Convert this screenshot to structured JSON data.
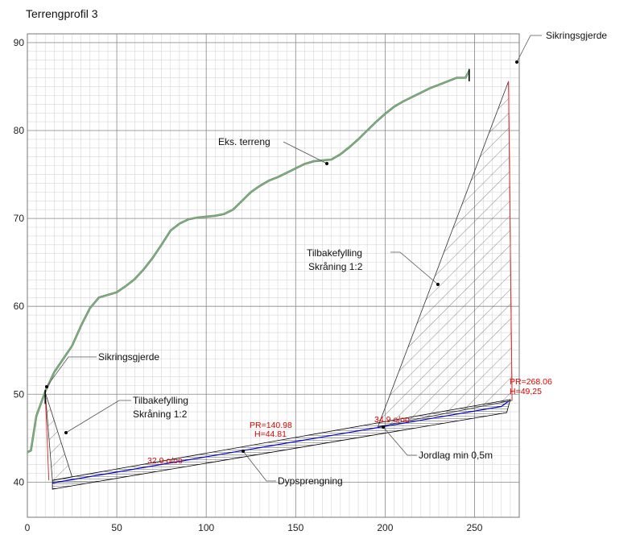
{
  "title": "Terrengprofil 3",
  "chart_data": {
    "type": "line",
    "title": "Terrengprofil 3",
    "xlim": [
      0,
      275
    ],
    "ylim": [
      36,
      91
    ],
    "x_ticks": [
      0,
      50,
      100,
      150,
      200,
      250
    ],
    "y_ticks": [
      40,
      50,
      60,
      70,
      80,
      90
    ],
    "minor_grid": 5,
    "major_x_grid": [
      0,
      50,
      100,
      150,
      200,
      250
    ],
    "major_y_grid": [
      40,
      50,
      60,
      70,
      80,
      90
    ],
    "grid": true,
    "series": [
      {
        "name": "Eks. terreng",
        "color": "#6cc76c",
        "points": [
          [
            0,
            43.4
          ],
          [
            2,
            43.6
          ],
          [
            5,
            47.5
          ],
          [
            10,
            50.3
          ],
          [
            15,
            52.5
          ],
          [
            20,
            54
          ],
          [
            25,
            55.5
          ],
          [
            30,
            57.8
          ],
          [
            35,
            59.8
          ],
          [
            40,
            61
          ],
          [
            45,
            61.3
          ],
          [
            50,
            61.6
          ],
          [
            55,
            62.3
          ],
          [
            60,
            63.1
          ],
          [
            65,
            64.2
          ],
          [
            70,
            65.5
          ],
          [
            75,
            67
          ],
          [
            80,
            68.6
          ],
          [
            85,
            69.4
          ],
          [
            90,
            69.9
          ],
          [
            95,
            70.1
          ],
          [
            100,
            70.2
          ],
          [
            105,
            70.3
          ],
          [
            110,
            70.5
          ],
          [
            115,
            71
          ],
          [
            120,
            72
          ],
          [
            125,
            73
          ],
          [
            130,
            73.7
          ],
          [
            135,
            74.3
          ],
          [
            140,
            74.7
          ],
          [
            145,
            75.2
          ],
          [
            150,
            75.7
          ],
          [
            155,
            76.2
          ],
          [
            160,
            76.5
          ],
          [
            165,
            76.6
          ],
          [
            170,
            76.7
          ],
          [
            175,
            77.3
          ],
          [
            180,
            78.1
          ],
          [
            185,
            79
          ],
          [
            190,
            80
          ],
          [
            195,
            81
          ],
          [
            200,
            81.9
          ],
          [
            205,
            82.7
          ],
          [
            210,
            83.3
          ],
          [
            215,
            83.8
          ],
          [
            220,
            84.3
          ],
          [
            225,
            84.8
          ],
          [
            230,
            85.2
          ],
          [
            235,
            85.6
          ],
          [
            240,
            86
          ],
          [
            245,
            86
          ],
          [
            247,
            86.8
          ]
        ]
      },
      {
        "name": "Dypsprengning",
        "color": "#0000cc",
        "points": [
          [
            14,
            39.9
          ],
          [
            265,
            48.6
          ],
          [
            269,
            49.2
          ]
        ]
      }
    ],
    "hatched_regions": [
      {
        "name": "left-fill",
        "polygon": [
          [
            10,
            50.2
          ],
          [
            14,
            40.2
          ],
          [
            25,
            40.6
          ]
        ],
        "label_value": "Tilbakefylling Skråning 1:2"
      },
      {
        "name": "right-fill",
        "polygon": [
          [
            196,
            46.3
          ],
          [
            271,
            49.3
          ],
          [
            269,
            85.6
          ]
        ],
        "label_value": "Tilbakefylling Skråning 1:2"
      }
    ],
    "labels": {
      "eks_terreng": "Eks. terreng",
      "sikringsgjerde_top": "Sikringsgjerde",
      "sikringsgjerde_left": "Sikringsgjerde",
      "tilbake_left_line1": "Tilbakefylling",
      "tilbake_left_line2": "Skråning 1:2",
      "tilbake_right_line1": "Tilbakefylling",
      "tilbake_right_line2": "Skråning 1:2",
      "jordlag": "Jordlag min 0,5m",
      "dypsprengning": "Dypsprengning",
      "slope_left": "32.9 o/oo",
      "slope_right": "34.9 o/oo",
      "pr_mid": "PR=140.98",
      "h_mid": "H=44.81",
      "pr_right": "PR=268.06",
      "h_right": "H=49,25"
    }
  }
}
